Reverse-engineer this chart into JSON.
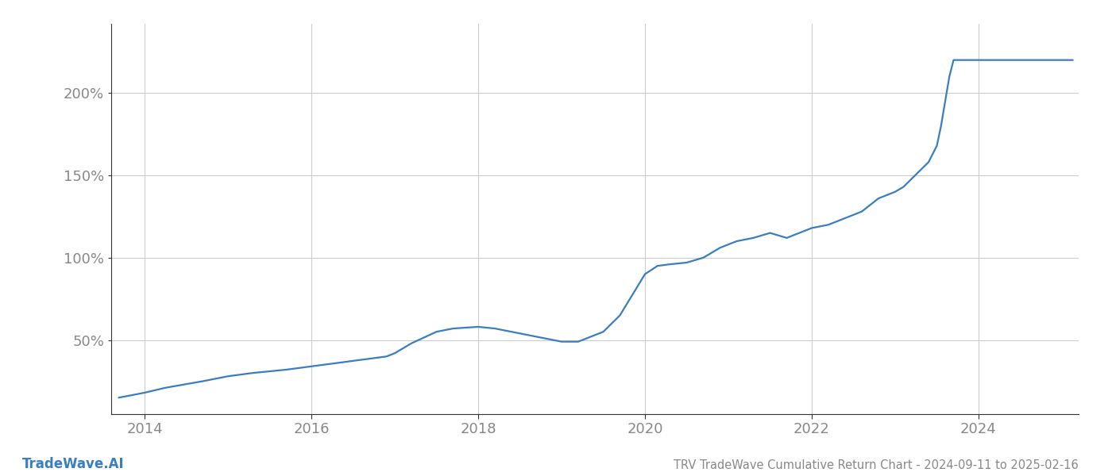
{
  "title": "TRV TradeWave Cumulative Return Chart - 2024-09-11 to 2025-02-16",
  "watermark": "TradeWave.AI",
  "line_color": "#3a7ebf",
  "background_color": "#ffffff",
  "grid_color": "#cccccc",
  "x_data": [
    2013.69,
    2014.0,
    2014.25,
    2014.7,
    2015.0,
    2015.3,
    2015.7,
    2016.0,
    2016.3,
    2016.6,
    2016.9,
    2017.0,
    2017.2,
    2017.5,
    2017.7,
    2018.0,
    2018.2,
    2018.5,
    2018.7,
    2019.0,
    2019.2,
    2019.5,
    2019.7,
    2020.0,
    2020.15,
    2020.3,
    2020.5,
    2020.7,
    2020.9,
    2021.1,
    2021.3,
    2021.5,
    2021.7,
    2021.9,
    2022.0,
    2022.2,
    2022.4,
    2022.6,
    2022.8,
    2022.85,
    2022.9,
    2023.0,
    2023.1,
    2023.2,
    2023.4,
    2023.5,
    2023.55,
    2023.6,
    2023.65,
    2023.7,
    2024.0,
    2024.5,
    2025.13
  ],
  "y_data": [
    15,
    18,
    21,
    25,
    28,
    30,
    32,
    34,
    36,
    38,
    40,
    42,
    48,
    55,
    57,
    58,
    57,
    54,
    52,
    49,
    49,
    55,
    65,
    90,
    95,
    96,
    97,
    100,
    106,
    110,
    112,
    115,
    112,
    116,
    118,
    120,
    124,
    128,
    136,
    137,
    138,
    140,
    143,
    148,
    158,
    168,
    180,
    195,
    210,
    220,
    220,
    220,
    220
  ],
  "yticks": [
    50,
    100,
    150,
    200
  ],
  "ytick_labels": [
    "50%",
    "100%",
    "150%",
    "200%"
  ],
  "xticks": [
    2014,
    2016,
    2018,
    2020,
    2022,
    2024
  ],
  "xlim": [
    2013.6,
    2025.2
  ],
  "ylim": [
    5,
    242
  ],
  "title_fontsize": 10.5,
  "watermark_fontsize": 12,
  "tick_fontsize": 13,
  "axis_color": "#888888",
  "spine_color": "#333333",
  "line_width": 1.6
}
